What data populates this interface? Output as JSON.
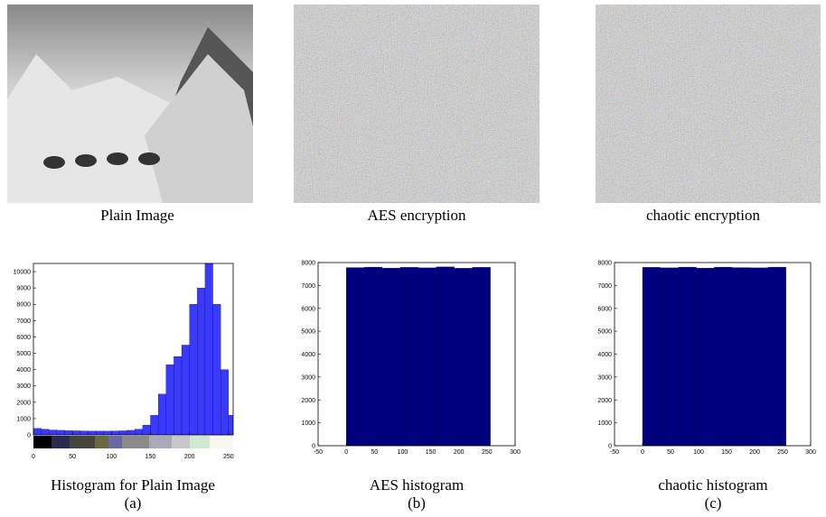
{
  "panels": [
    {
      "image_caption": "Plain Image",
      "chart_caption": "Histogram for  Plain Image",
      "label": "(a)"
    },
    {
      "image_caption": "AES encryption",
      "chart_caption": "AES histogram",
      "label": "(b)"
    },
    {
      "image_caption": "chaotic encryption",
      "chart_caption": "chaotic histogram",
      "label": "(c)"
    }
  ],
  "chart_data": [
    {
      "type": "histogram",
      "color": "#3a3aff",
      "bins": [
        0,
        10,
        20,
        30,
        40,
        50,
        60,
        70,
        80,
        90,
        100,
        110,
        120,
        130,
        140,
        150,
        160,
        170,
        180,
        190,
        200,
        210,
        220,
        230,
        240,
        250,
        256
      ],
      "values": [
        400,
        350,
        300,
        280,
        260,
        250,
        240,
        230,
        230,
        230,
        240,
        250,
        280,
        350,
        600,
        1200,
        2500,
        4300,
        4800,
        5500,
        8000,
        9000,
        10500,
        8000,
        4000,
        1200
      ],
      "xlim": [
        0,
        256
      ],
      "xticks": [
        0,
        50,
        100,
        150,
        200,
        250
      ],
      "ylim": [
        0,
        10500
      ],
      "yticks": [
        0,
        1000,
        2000,
        3000,
        4000,
        5000,
        6000,
        7000,
        8000,
        9000,
        10000
      ]
    },
    {
      "type": "histogram",
      "color": "#00007f",
      "bins": [
        0,
        32,
        64,
        96,
        128,
        160,
        192,
        224,
        256
      ],
      "values": [
        7780,
        7800,
        7760,
        7790,
        7770,
        7810,
        7750,
        7790
      ],
      "xlim": [
        -50,
        300
      ],
      "xticks": [
        -50,
        0,
        50,
        100,
        150,
        200,
        250,
        300
      ],
      "ylim": [
        0,
        8000
      ],
      "yticks": [
        0,
        1000,
        2000,
        3000,
        4000,
        5000,
        6000,
        7000,
        8000
      ]
    },
    {
      "type": "histogram",
      "color": "#00007f",
      "bins": [
        0,
        32,
        64,
        96,
        128,
        160,
        192,
        224,
        256
      ],
      "values": [
        7790,
        7770,
        7800,
        7760,
        7800,
        7780,
        7770,
        7800
      ],
      "xlim": [
        -50,
        300
      ],
      "xticks": [
        -50,
        0,
        50,
        100,
        150,
        200,
        250,
        300
      ],
      "ylim": [
        0,
        8000
      ],
      "yticks": [
        0,
        1000,
        2000,
        3000,
        4000,
        5000,
        6000,
        7000,
        8000
      ]
    }
  ]
}
